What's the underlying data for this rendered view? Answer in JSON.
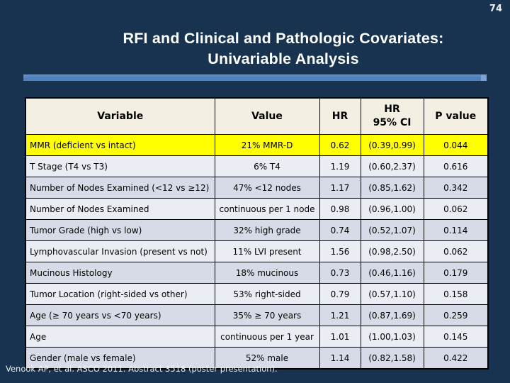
{
  "page_number": "74",
  "title": {
    "line1": "RFI and Clinical and Pathologic Covariates:",
    "line2": "Univariable Analysis"
  },
  "table": {
    "headers": {
      "variable": "Variable",
      "value": "Value",
      "hr": "HR",
      "hr_ci_line1": "HR",
      "hr_ci_line2": "95% CI",
      "p_value": "P value"
    },
    "rows": [
      {
        "variable": "MMR (deficient vs intact)",
        "value": "21% MMR-D",
        "hr": "0.62",
        "ci": "(0.39,0.99)",
        "p": "0.044",
        "highlighted": true
      },
      {
        "variable": "T Stage (T4 vs T3)",
        "value": "6% T4",
        "hr": "1.19",
        "ci": "(0.60,2.37)",
        "p": "0.616",
        "highlighted": false
      },
      {
        "variable": "Number of Nodes Examined (<12 vs ≥12)",
        "value": "47% <12 nodes",
        "hr": "1.17",
        "ci": "(0.85,1.62)",
        "p": "0.342",
        "highlighted": false
      },
      {
        "variable": "Number of Nodes Examined",
        "value": "continuous per 1 node",
        "hr": "0.98",
        "ci": "(0.96,1.00)",
        "p": "0.062",
        "highlighted": false
      },
      {
        "variable": "Tumor Grade (high vs low)",
        "value": "32% high grade",
        "hr": "0.74",
        "ci": "(0.52,1.07)",
        "p": "0.114",
        "highlighted": false
      },
      {
        "variable": "Lymphovascular Invasion (present vs not)",
        "value": "11% LVI present",
        "hr": "1.56",
        "ci": "(0.98,2.50)",
        "p": "0.062",
        "highlighted": false
      },
      {
        "variable": "Mucinous Histology",
        "value": "18% mucinous",
        "hr": "0.73",
        "ci": "(0.46,1.16)",
        "p": "0.179",
        "highlighted": false
      },
      {
        "variable": "Tumor Location (right-sided vs other)",
        "value": "53% right-sided",
        "hr": "0.79",
        "ci": "(0.57,1.10)",
        "p": "0.158",
        "highlighted": false
      },
      {
        "variable": "Age (≥ 70 years vs <70 years)",
        "value": "35% ≥ 70 years",
        "hr": "1.21",
        "ci": "(0.87,1.69)",
        "p": "0.259",
        "highlighted": false
      },
      {
        "variable": "Age",
        "value": "continuous per 1 year",
        "hr": "1.01",
        "ci": "(1.00,1.03)",
        "p": "0.145",
        "highlighted": false
      },
      {
        "variable": "Gender (male vs female)",
        "value": "52% male",
        "hr": "1.14",
        "ci": "(0.82,1.58)",
        "p": "0.422",
        "highlighted": false
      }
    ]
  },
  "footer": {
    "citation": "Venook AP, et al. ASCO 2011. Abstract 3518 (poster presentation)."
  },
  "colors": {
    "background": "#18334F",
    "accent_bar": "#4F81BD",
    "header_background": "#F3F0E3",
    "highlight_row": "#FFFF00",
    "row_light": "#EAEDF4",
    "row_dark": "#D6DBE7",
    "title_text": "#FFFFFF"
  }
}
